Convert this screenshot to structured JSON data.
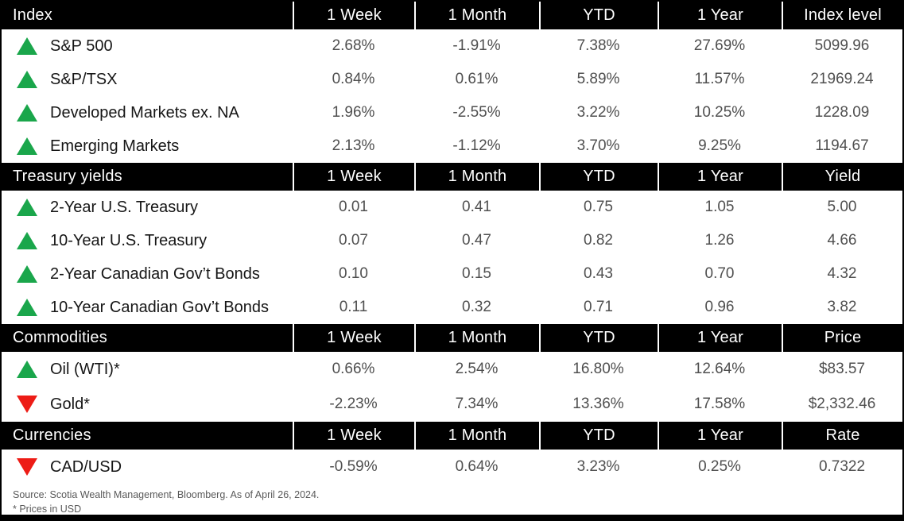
{
  "colors": {
    "up": "#1aa64b",
    "down": "#ed1c16",
    "header_bg": "#000000",
    "header_text": "#ffffff"
  },
  "columns": [
    "1 Week",
    "1 Month",
    "YTD",
    "1 Year"
  ],
  "sections": [
    {
      "title": "Index",
      "value_header": "Index level",
      "rows": [
        {
          "direction": "up",
          "label": "S&P 500",
          "values": [
            "2.68%",
            "-1.91%",
            "7.38%",
            "27.69%",
            "5099.96"
          ]
        },
        {
          "direction": "up",
          "label": "S&P/TSX",
          "values": [
            "0.84%",
            "0.61%",
            "5.89%",
            "11.57%",
            "21969.24"
          ]
        },
        {
          "direction": "up",
          "label": "Developed Markets ex. NA",
          "values": [
            "1.96%",
            "-2.55%",
            "3.22%",
            "10.25%",
            "1228.09"
          ]
        },
        {
          "direction": "up",
          "label": "Emerging Markets",
          "values": [
            "2.13%",
            "-1.12%",
            "3.70%",
            "9.25%",
            "1194.67"
          ]
        }
      ]
    },
    {
      "title": "Treasury yields",
      "value_header": "Yield",
      "rows": [
        {
          "direction": "up",
          "label": "2-Year U.S. Treasury",
          "values": [
            "0.01",
            "0.41",
            "0.75",
            "1.05",
            "5.00"
          ]
        },
        {
          "direction": "up",
          "label": "10-Year U.S. Treasury",
          "values": [
            "0.07",
            "0.47",
            "0.82",
            "1.26",
            "4.66"
          ]
        },
        {
          "direction": "up",
          "label": "2-Year Canadian Gov’t Bonds",
          "values": [
            "0.10",
            "0.15",
            "0.43",
            "0.70",
            "4.32"
          ]
        },
        {
          "direction": "up",
          "label": "10-Year Canadian Gov’t Bonds",
          "values": [
            "0.11",
            "0.32",
            "0.71",
            "0.96",
            "3.82"
          ]
        }
      ]
    },
    {
      "title": "Commodities",
      "value_header": "Price",
      "rows": [
        {
          "direction": "up",
          "label": "Oil (WTI)*",
          "values": [
            "0.66%",
            "2.54%",
            "16.80%",
            "12.64%",
            "$83.57"
          ]
        },
        {
          "direction": "down",
          "label": "Gold*",
          "values": [
            "-2.23%",
            "7.34%",
            "13.36%",
            "17.58%",
            "$2,332.46"
          ]
        }
      ]
    },
    {
      "title": "Currencies",
      "value_header": "Rate",
      "rows": [
        {
          "direction": "down",
          "label": "CAD/USD",
          "values": [
            "-0.59%",
            "0.64%",
            "3.23%",
            "0.25%",
            "0.7322"
          ]
        }
      ]
    }
  ],
  "footer": {
    "source": "Source: Scotia Wealth Management, Bloomberg. As of April 26, 2024.",
    "note": "* Prices in USD"
  }
}
